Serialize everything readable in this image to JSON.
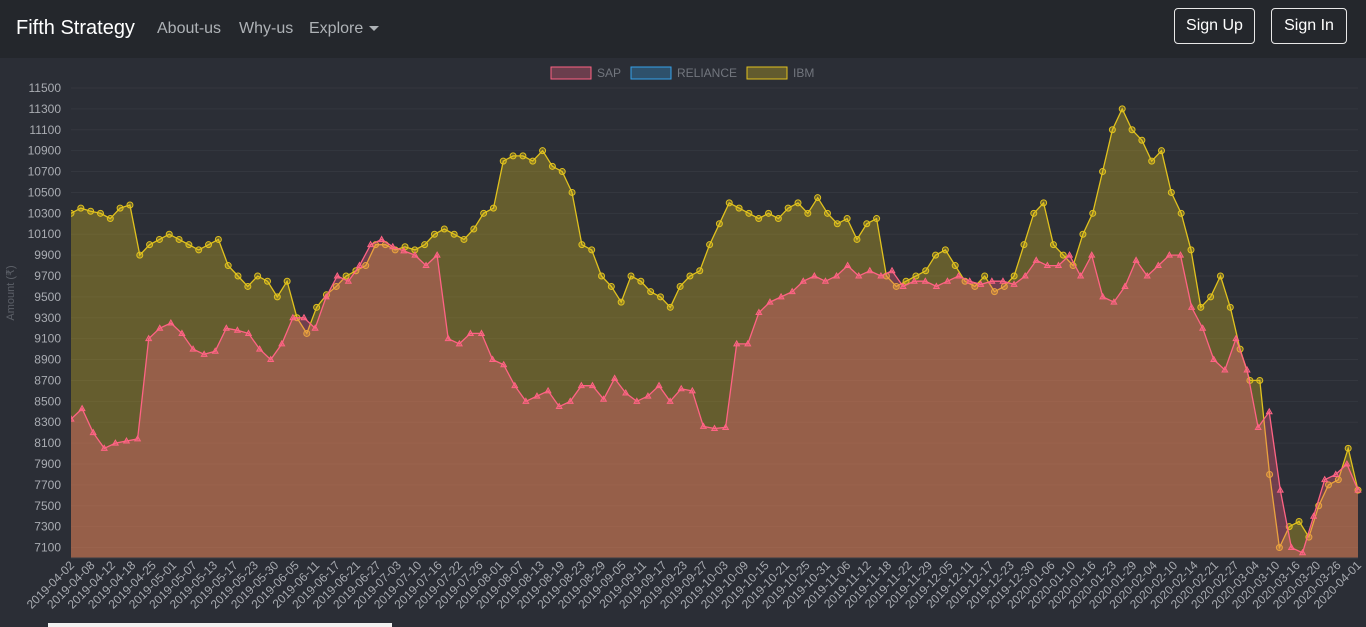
{
  "navbar": {
    "brand": "Fifth Strategy",
    "links": [
      "About-us",
      "Why-us",
      "Explore"
    ],
    "signup_label": "Sign Up",
    "signin_label": "Sign In"
  },
  "colors": {
    "sap": "#ff6384",
    "reliance": "#36a2eb",
    "ibm": "#e1c21e"
  },
  "chart_data": {
    "type": "area",
    "ylabel": "Amount (₹)",
    "ylim": [
      7000,
      11500
    ],
    "yticks": [
      7100,
      7300,
      7500,
      7700,
      7900,
      8100,
      8300,
      8500,
      8700,
      8900,
      9100,
      9300,
      9500,
      9700,
      9900,
      10100,
      10300,
      10500,
      10700,
      10900,
      11100,
      11300,
      11500
    ],
    "legend": {
      "position": "top",
      "entries": [
        "SAP",
        "RELIANCE",
        "IBM"
      ]
    },
    "x_start": "2019-04-02",
    "x_end": "2020-04-01",
    "tick_labels": [
      "2019-04-02",
      "2019-04-08",
      "2019-04-12",
      "2019-04-18",
      "2019-04-25",
      "2019-05-01",
      "2019-05-07",
      "2019-05-13",
      "2019-05-17",
      "2019-05-23",
      "2019-05-30",
      "2019-06-05",
      "2019-06-11",
      "2019-06-17",
      "2019-06-21",
      "2019-06-27",
      "2019-07-03",
      "2019-07-10",
      "2019-07-16",
      "2019-07-22",
      "2019-07-26",
      "2019-08-01",
      "2019-08-07",
      "2019-08-13",
      "2019-08-19",
      "2019-08-23",
      "2019-08-29",
      "2019-09-05",
      "2019-09-11",
      "2019-09-17",
      "2019-09-23",
      "2019-09-27",
      "2019-10-03",
      "2019-10-09",
      "2019-10-15",
      "2019-10-21",
      "2019-10-25",
      "2019-10-31",
      "2019-11-06",
      "2019-11-12",
      "2019-11-18",
      "2019-11-22",
      "2019-11-29",
      "2019-12-05",
      "2019-12-11",
      "2019-12-17",
      "2019-12-23",
      "2019-12-30",
      "2020-01-06",
      "2020-01-10",
      "2020-01-16",
      "2020-01-23",
      "2020-01-29",
      "2020-02-04",
      "2020-02-10",
      "2020-02-14",
      "2020-02-21",
      "2020-02-27",
      "2020-03-04",
      "2020-03-10",
      "2020-03-16",
      "2020-03-20",
      "2020-03-26",
      "2020-04-01"
    ],
    "series": [
      {
        "name": "SAP",
        "values": [
          8330,
          8430,
          8200,
          8050,
          8100,
          8120,
          8140,
          9100,
          9200,
          9250,
          9150,
          9000,
          8950,
          8980,
          9200,
          9180,
          9150,
          9000,
          8900,
          9050,
          9300,
          9300,
          9200,
          9500,
          9700,
          9650,
          9800,
          10000,
          10050,
          9980,
          9940,
          9900,
          9800,
          9900,
          9100,
          9050,
          9150,
          9150,
          8900,
          8850,
          8650,
          8500,
          8550,
          8600,
          8450,
          8500,
          8650,
          8650,
          8520,
          8720,
          8580,
          8500,
          8550,
          8650,
          8500,
          8620,
          8600,
          8260,
          8240,
          8250,
          9050,
          9050,
          9350,
          9450,
          9500,
          9550,
          9650,
          9700,
          9650,
          9700,
          9800,
          9700,
          9750,
          9700,
          9750,
          9600,
          9650,
          9650,
          9600,
          9650,
          9700,
          9650,
          9620,
          9650,
          9650,
          9620,
          9700,
          9850,
          9800,
          9800,
          9900,
          9700,
          9900,
          9500,
          9450,
          9600,
          9850,
          9700,
          9800,
          9900,
          9900,
          9400,
          9200,
          8900,
          8800,
          9100,
          8800,
          8250,
          8400,
          7650,
          7100,
          7050,
          7400,
          7750,
          7800,
          7900,
          7650
        ]
      },
      {
        "name": "RELIANCE",
        "values": []
      },
      {
        "name": "IBM",
        "values": [
          10300,
          10350,
          10320,
          10300,
          10250,
          10350,
          10380,
          9900,
          10000,
          10050,
          10100,
          10050,
          10000,
          9950,
          10000,
          10050,
          9800,
          9700,
          9600,
          9700,
          9650,
          9500,
          9650,
          9300,
          9150,
          9400,
          9520,
          9600,
          9700,
          9750,
          9800,
          10000,
          10000,
          9950,
          9980,
          9950,
          10000,
          10100,
          10150,
          10100,
          10050,
          10150,
          10300,
          10350,
          10800,
          10850,
          10850,
          10800,
          10900,
          10750,
          10700,
          10500,
          10000,
          9950,
          9700,
          9600,
          9450,
          9700,
          9650,
          9550,
          9500,
          9400,
          9600,
          9700,
          9750,
          10000,
          10200,
          10400,
          10350,
          10300,
          10250,
          10300,
          10250,
          10350,
          10400,
          10300,
          10450,
          10300,
          10200,
          10250,
          10050,
          10200,
          10250,
          9700,
          9600,
          9650,
          9700,
          9750,
          9900,
          9950,
          9800,
          9650,
          9600,
          9700,
          9550,
          9600,
          9700,
          10000,
          10300,
          10400,
          10000,
          9900,
          9800,
          10100,
          10300,
          10700,
          11100,
          11300,
          11100,
          11000,
          10800,
          10900,
          10500,
          10300,
          9950,
          9400,
          9500,
          9700,
          9400,
          9000,
          8700,
          8700,
          7800,
          7100,
          7300,
          7350,
          7200,
          7500,
          7700,
          7750,
          8050,
          7650
        ]
      }
    ]
  }
}
